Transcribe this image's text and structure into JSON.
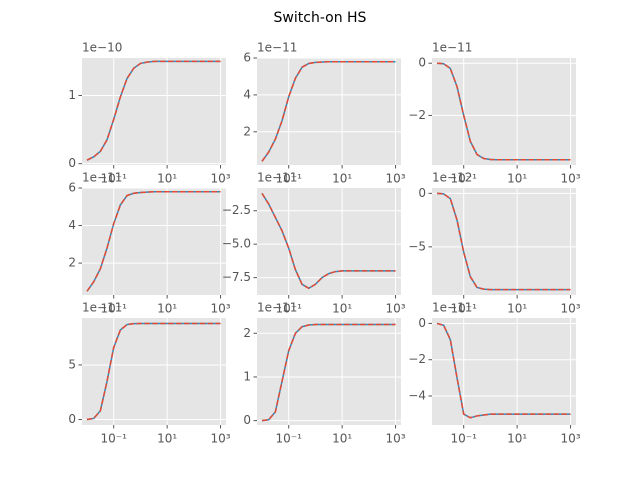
{
  "title": "Switch-on HS",
  "chart_data": [
    {
      "type": "line",
      "xscale": "log",
      "grid": true,
      "offset_text": "1e−10",
      "x": [
        0.01,
        0.01778,
        0.03162,
        0.05623,
        0.1,
        0.1778,
        0.3162,
        0.5623,
        1,
        1.778,
        3.162,
        5.623,
        10,
        17.78,
        31.62,
        56.23,
        100,
        177.8,
        316.2,
        562.3,
        1000
      ],
      "xlim": [
        0.0065,
        1600
      ],
      "xticks": [
        {
          "value": 0.1,
          "label": "10⁻¹"
        },
        {
          "value": 10,
          "label": "10¹"
        },
        {
          "value": 1000,
          "label": "10³"
        }
      ],
      "ylim": [
        -0.02,
        1.55
      ],
      "yticks": [
        0,
        1
      ],
      "series": [
        {
          "color": "#348ABD",
          "dash": false,
          "values": [
            0.05,
            0.1,
            0.18,
            0.35,
            0.65,
            0.98,
            1.25,
            1.4,
            1.47,
            1.49,
            1.5,
            1.5,
            1.5,
            1.5,
            1.5,
            1.5,
            1.5,
            1.5,
            1.5,
            1.5,
            1.5
          ]
        },
        {
          "color": "#E24A33",
          "dash": true,
          "values": [
            0.05,
            0.1,
            0.18,
            0.35,
            0.65,
            0.98,
            1.25,
            1.4,
            1.47,
            1.49,
            1.5,
            1.5,
            1.5,
            1.5,
            1.5,
            1.5,
            1.5,
            1.5,
            1.5,
            1.5,
            1.5
          ]
        }
      ]
    },
    {
      "type": "line",
      "xscale": "log",
      "grid": true,
      "offset_text": "1e−11",
      "x": [
        0.01,
        0.01778,
        0.03162,
        0.05623,
        0.1,
        0.1778,
        0.3162,
        0.5623,
        1,
        1.778,
        3.162,
        5.623,
        10,
        17.78,
        31.62,
        56.23,
        100,
        177.8,
        316.2,
        562.3,
        1000
      ],
      "xlim": [
        0.0065,
        1600
      ],
      "xticks": [
        {
          "value": 0.1,
          "label": "10⁻¹"
        },
        {
          "value": 10,
          "label": "10¹"
        },
        {
          "value": 1000,
          "label": "10³"
        }
      ],
      "ylim": [
        0.2,
        6.0
      ],
      "yticks": [
        2,
        4,
        6
      ],
      "series": [
        {
          "color": "#348ABD",
          "dash": false,
          "values": [
            0.4,
            0.9,
            1.6,
            2.6,
            3.9,
            4.9,
            5.5,
            5.7,
            5.76,
            5.78,
            5.8,
            5.8,
            5.8,
            5.8,
            5.8,
            5.8,
            5.8,
            5.8,
            5.8,
            5.8,
            5.8
          ]
        },
        {
          "color": "#E24A33",
          "dash": true,
          "values": [
            0.4,
            0.9,
            1.6,
            2.6,
            3.9,
            4.9,
            5.5,
            5.7,
            5.76,
            5.78,
            5.8,
            5.8,
            5.8,
            5.8,
            5.8,
            5.8,
            5.8,
            5.8,
            5.8,
            5.8,
            5.8
          ]
        }
      ]
    },
    {
      "type": "line",
      "xscale": "log",
      "grid": true,
      "offset_text": "1e−11",
      "x": [
        0.01,
        0.01778,
        0.03162,
        0.05623,
        0.1,
        0.1778,
        0.3162,
        0.5623,
        1,
        1.778,
        3.162,
        5.623,
        10,
        17.78,
        31.62,
        56.23,
        100,
        177.8,
        316.2,
        562.3,
        1000
      ],
      "xlim": [
        0.0065,
        1600
      ],
      "xticks": [
        {
          "value": 0.1,
          "label": "10⁻¹"
        },
        {
          "value": 10,
          "label": "10¹"
        },
        {
          "value": 1000,
          "label": "10³"
        }
      ],
      "ylim": [
        -3.9,
        0.2
      ],
      "yticks": [
        0,
        {
          "value": -2,
          "label": "−2"
        }
      ],
      "series": [
        {
          "color": "#348ABD",
          "dash": false,
          "values": [
            0,
            -0.02,
            -0.2,
            -0.9,
            -2.0,
            -3.0,
            -3.5,
            -3.65,
            -3.69,
            -3.7,
            -3.7,
            -3.7,
            -3.7,
            -3.7,
            -3.7,
            -3.7,
            -3.7,
            -3.7,
            -3.7,
            -3.7,
            -3.7
          ]
        },
        {
          "color": "#E24A33",
          "dash": true,
          "values": [
            0,
            -0.02,
            -0.2,
            -0.9,
            -2.0,
            -3.0,
            -3.5,
            -3.65,
            -3.69,
            -3.7,
            -3.7,
            -3.7,
            -3.7,
            -3.7,
            -3.7,
            -3.7,
            -3.7,
            -3.7,
            -3.7,
            -3.7,
            -3.7
          ]
        }
      ]
    },
    {
      "type": "line",
      "xscale": "log",
      "grid": true,
      "offset_text": "1e−11",
      "x": [
        0.01,
        0.01778,
        0.03162,
        0.05623,
        0.1,
        0.1778,
        0.3162,
        0.5623,
        1,
        1.778,
        3.162,
        5.623,
        10,
        17.78,
        31.62,
        56.23,
        100,
        177.8,
        316.2,
        562.3,
        1000
      ],
      "xlim": [
        0.0065,
        1600
      ],
      "xticks": [
        {
          "value": 0.1,
          "label": "10⁻¹"
        },
        {
          "value": 10,
          "label": "10¹"
        },
        {
          "value": 1000,
          "label": "10³"
        }
      ],
      "ylim": [
        0.3,
        6.0
      ],
      "yticks": [
        2,
        4,
        6
      ],
      "series": [
        {
          "color": "#348ABD",
          "dash": false,
          "values": [
            0.5,
            1.0,
            1.7,
            2.8,
            4.1,
            5.1,
            5.6,
            5.72,
            5.76,
            5.78,
            5.8,
            5.8,
            5.8,
            5.8,
            5.8,
            5.8,
            5.8,
            5.8,
            5.8,
            5.8,
            5.8
          ]
        },
        {
          "color": "#E24A33",
          "dash": true,
          "values": [
            0.5,
            1.0,
            1.7,
            2.8,
            4.1,
            5.1,
            5.6,
            5.72,
            5.76,
            5.78,
            5.8,
            5.8,
            5.8,
            5.8,
            5.8,
            5.8,
            5.8,
            5.8,
            5.8,
            5.8,
            5.8
          ]
        }
      ]
    },
    {
      "type": "line",
      "xscale": "log",
      "grid": true,
      "offset_text": "1e−11",
      "x": [
        0.01,
        0.01778,
        0.03162,
        0.05623,
        0.1,
        0.1778,
        0.3162,
        0.5623,
        1,
        1.778,
        3.162,
        5.623,
        10,
        17.78,
        31.62,
        56.23,
        100,
        177.8,
        316.2,
        562.3,
        1000
      ],
      "xlim": [
        0.0065,
        1600
      ],
      "xticks": [
        {
          "value": 0.1,
          "label": "10⁻¹"
        },
        {
          "value": 10,
          "label": "10¹"
        },
        {
          "value": 1000,
          "label": "10³"
        }
      ],
      "ylim": [
        -8.8,
        -0.8
      ],
      "yticks": [
        {
          "value": -2.5,
          "label": "−2.5"
        },
        {
          "value": -5.0,
          "label": "−5.0"
        },
        {
          "value": -7.5,
          "label": "−7.5"
        }
      ],
      "series": [
        {
          "color": "#348ABD",
          "dash": false,
          "values": [
            -1.2,
            -2.0,
            -3.0,
            -4.0,
            -5.3,
            -6.9,
            -8.0,
            -8.3,
            -8.0,
            -7.5,
            -7.2,
            -7.05,
            -7.0,
            -7.0,
            -7.0,
            -7.0,
            -7.0,
            -7.0,
            -7.0,
            -7.0,
            -7.0
          ]
        },
        {
          "color": "#E24A33",
          "dash": true,
          "values": [
            -1.2,
            -2.0,
            -3.0,
            -4.0,
            -5.3,
            -6.9,
            -8.0,
            -8.3,
            -8.0,
            -7.5,
            -7.2,
            -7.05,
            -7.0,
            -7.0,
            -7.0,
            -7.0,
            -7.0,
            -7.0,
            -7.0,
            -7.0,
            -7.0
          ]
        }
      ]
    },
    {
      "type": "line",
      "xscale": "log",
      "grid": true,
      "offset_text": "1e−12",
      "x": [
        0.01,
        0.01778,
        0.03162,
        0.05623,
        0.1,
        0.1778,
        0.3162,
        0.5623,
        1,
        1.778,
        3.162,
        5.623,
        10,
        17.78,
        31.62,
        56.23,
        100,
        177.8,
        316.2,
        562.3,
        1000
      ],
      "xlim": [
        0.0065,
        1600
      ],
      "xticks": [
        {
          "value": 0.1,
          "label": "10⁻¹"
        },
        {
          "value": 10,
          "label": "10¹"
        },
        {
          "value": 1000,
          "label": "10³"
        }
      ],
      "ylim": [
        -9.5,
        0.5
      ],
      "yticks": [
        0,
        {
          "value": -5,
          "label": "−5"
        }
      ],
      "series": [
        {
          "color": "#348ABD",
          "dash": false,
          "values": [
            0,
            -0.05,
            -0.5,
            -2.5,
            -5.5,
            -7.8,
            -8.8,
            -8.95,
            -9.0,
            -9.0,
            -9.0,
            -9.0,
            -9.0,
            -9.0,
            -9.0,
            -9.0,
            -9.0,
            -9.0,
            -9.0,
            -9.0,
            -9.0
          ]
        },
        {
          "color": "#E24A33",
          "dash": true,
          "values": [
            0,
            -0.05,
            -0.5,
            -2.5,
            -5.5,
            -7.8,
            -8.8,
            -8.95,
            -9.0,
            -9.0,
            -9.0,
            -9.0,
            -9.0,
            -9.0,
            -9.0,
            -9.0,
            -9.0,
            -9.0,
            -9.0,
            -9.0,
            -9.0
          ]
        }
      ]
    },
    {
      "type": "line",
      "xscale": "log",
      "grid": true,
      "offset_text": "1e−11",
      "x": [
        0.01,
        0.01778,
        0.03162,
        0.05623,
        0.1,
        0.1778,
        0.3162,
        0.5623,
        1,
        1.778,
        3.162,
        5.623,
        10,
        17.78,
        31.62,
        56.23,
        100,
        177.8,
        316.2,
        562.3,
        1000
      ],
      "xlim": [
        0.0065,
        1600
      ],
      "xticks": [
        {
          "value": 0.1,
          "label": "10⁻¹"
        },
        {
          "value": 10,
          "label": "10¹"
        },
        {
          "value": 1000,
          "label": "10³"
        }
      ],
      "ylim": [
        -0.5,
        9.3
      ],
      "yticks": [
        0,
        5
      ],
      "series": [
        {
          "color": "#348ABD",
          "dash": false,
          "values": [
            0,
            0.1,
            0.8,
            3.5,
            6.6,
            8.2,
            8.7,
            8.78,
            8.8,
            8.8,
            8.8,
            8.8,
            8.8,
            8.8,
            8.8,
            8.8,
            8.8,
            8.8,
            8.8,
            8.8,
            8.8
          ]
        },
        {
          "color": "#E24A33",
          "dash": true,
          "values": [
            0,
            0.1,
            0.8,
            3.5,
            6.6,
            8.2,
            8.7,
            8.78,
            8.8,
            8.8,
            8.8,
            8.8,
            8.8,
            8.8,
            8.8,
            8.8,
            8.8,
            8.8,
            8.8,
            8.8,
            8.8
          ]
        }
      ]
    },
    {
      "type": "line",
      "xscale": "log",
      "grid": true,
      "offset_text": "1e−11",
      "x": [
        0.01,
        0.01778,
        0.03162,
        0.05623,
        0.1,
        0.1778,
        0.3162,
        0.5623,
        1,
        1.778,
        3.162,
        5.623,
        10,
        17.78,
        31.62,
        56.23,
        100,
        177.8,
        316.2,
        562.3,
        1000
      ],
      "xlim": [
        0.0065,
        1600
      ],
      "xticks": [
        {
          "value": 0.1,
          "label": "10⁻¹"
        },
        {
          "value": 10,
          "label": "10¹"
        },
        {
          "value": 1000,
          "label": "10³"
        }
      ],
      "ylim": [
        -0.1,
        2.35
      ],
      "yticks": [
        0,
        1,
        2
      ],
      "series": [
        {
          "color": "#348ABD",
          "dash": false,
          "values": [
            0,
            0.02,
            0.2,
            0.9,
            1.6,
            2.0,
            2.15,
            2.19,
            2.2,
            2.2,
            2.2,
            2.2,
            2.2,
            2.2,
            2.2,
            2.2,
            2.2,
            2.2,
            2.2,
            2.2,
            2.2
          ]
        },
        {
          "color": "#E24A33",
          "dash": true,
          "values": [
            0,
            0.02,
            0.2,
            0.9,
            1.6,
            2.0,
            2.15,
            2.19,
            2.2,
            2.2,
            2.2,
            2.2,
            2.2,
            2.2,
            2.2,
            2.2,
            2.2,
            2.2,
            2.2,
            2.2,
            2.2
          ]
        }
      ]
    },
    {
      "type": "line",
      "xscale": "log",
      "grid": true,
      "offset_text": "1e−11",
      "x": [
        0.01,
        0.01778,
        0.03162,
        0.05623,
        0.1,
        0.1778,
        0.3162,
        0.5623,
        1,
        1.778,
        3.162,
        5.623,
        10,
        17.78,
        31.62,
        56.23,
        100,
        177.8,
        316.2,
        562.3,
        1000
      ],
      "xlim": [
        0.0065,
        1600
      ],
      "xticks": [
        {
          "value": 0.1,
          "label": "10⁻¹"
        },
        {
          "value": 10,
          "label": "10¹"
        },
        {
          "value": 1000,
          "label": "10³"
        }
      ],
      "ylim": [
        -5.6,
        0.3
      ],
      "yticks": [
        0,
        {
          "value": -2,
          "label": "−2"
        },
        {
          "value": -4,
          "label": "−4"
        }
      ],
      "series": [
        {
          "color": "#348ABD",
          "dash": false,
          "values": [
            0,
            -0.1,
            -0.9,
            -3.0,
            -5.0,
            -5.2,
            -5.1,
            -5.05,
            -5.0,
            -5.0,
            -5.0,
            -5.0,
            -5.0,
            -5.0,
            -5.0,
            -5.0,
            -5.0,
            -5.0,
            -5.0,
            -5.0,
            -5.0
          ]
        },
        {
          "color": "#E24A33",
          "dash": true,
          "values": [
            0,
            -0.1,
            -0.9,
            -3.0,
            -5.0,
            -5.2,
            -5.1,
            -5.05,
            -5.0,
            -5.0,
            -5.0,
            -5.0,
            -5.0,
            -5.0,
            -5.0,
            -5.0,
            -5.0,
            -5.0,
            -5.0,
            -5.0,
            -5.0
          ]
        }
      ]
    }
  ]
}
